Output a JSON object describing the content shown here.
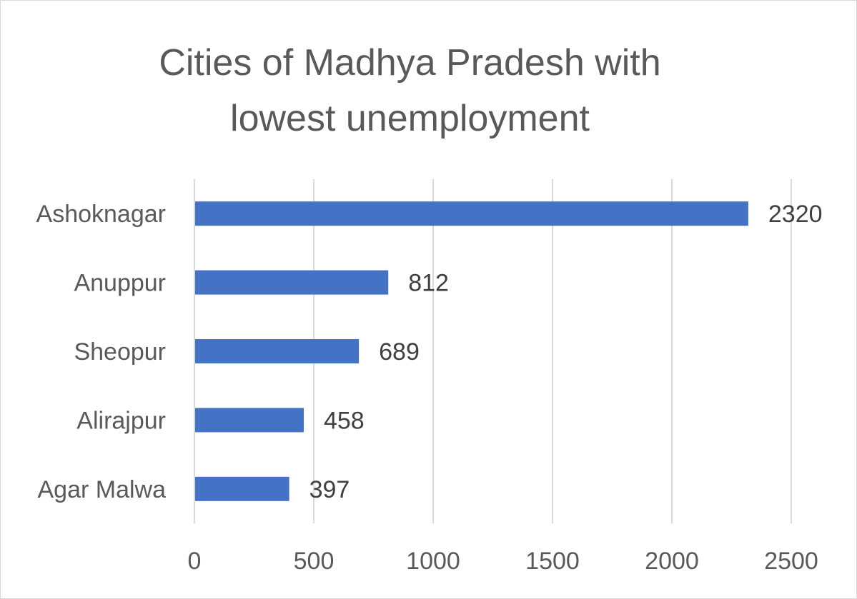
{
  "chart_data": {
    "type": "bar",
    "orientation": "horizontal",
    "title": [
      "Cities of Madhya Pradesh with",
      "lowest unemployment"
    ],
    "categories": [
      "Ashoknagar",
      "Anuppur",
      "Sheopur",
      "Alirajpur",
      "Agar Malwa"
    ],
    "values": [
      2320,
      812,
      689,
      458,
      397
    ],
    "data_labels": [
      "2320",
      "812",
      "689",
      "458",
      "397"
    ],
    "xlim": [
      0,
      2500
    ],
    "x_ticks": [
      0,
      500,
      1000,
      1500,
      2000,
      2500
    ],
    "x_tick_labels": [
      "0",
      "500",
      "1000",
      "1500",
      "2000",
      "2500"
    ],
    "xlabel": "",
    "ylabel": "",
    "grid": "vertical",
    "legend": "none",
    "bar_color": "#4472c4",
    "gridline_color": "#d9d9d9"
  }
}
